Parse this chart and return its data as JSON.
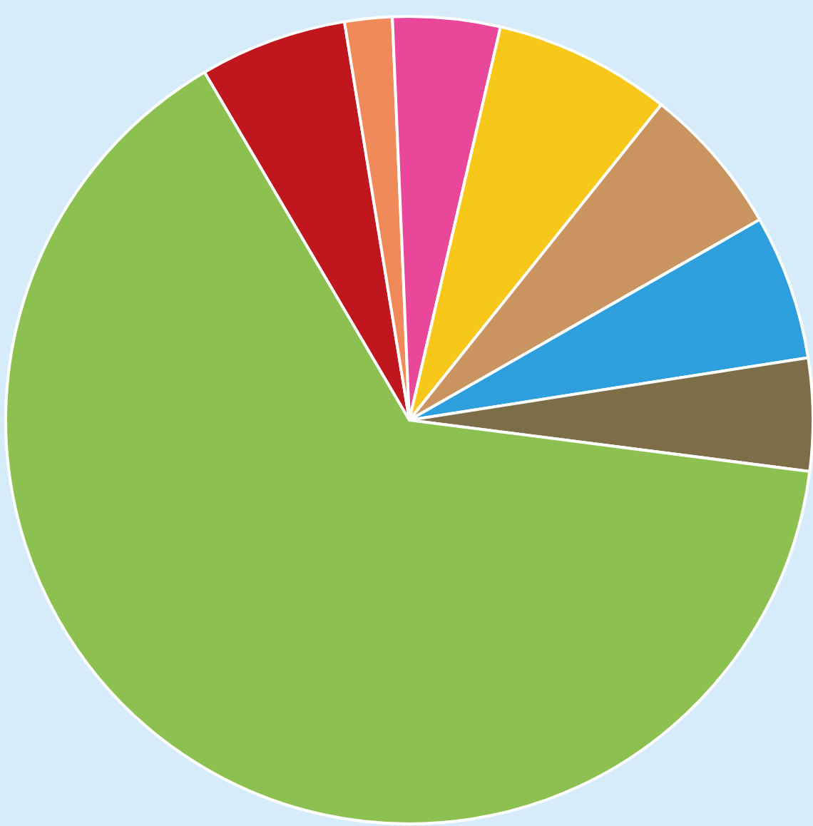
{
  "chart_data": {
    "type": "pie",
    "legend": false,
    "categories": [
      null,
      null,
      null,
      null,
      null,
      null,
      null,
      null
    ],
    "values": [
      5.9,
      1.9,
      4.3,
      7.1,
      6.0,
      5.8,
      4.5,
      64.5
    ],
    "colors": [
      "#c0161e",
      "#f08a5a",
      "#e8479a",
      "#f7c81a",
      "#c99460",
      "#2d9fdc",
      "#7d6d48",
      "#8cc152"
    ]
  }
}
